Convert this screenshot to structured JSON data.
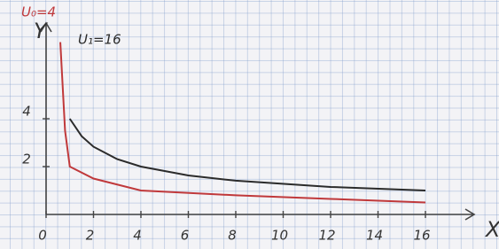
{
  "chart_data": {
    "type": "line",
    "x_label": "X",
    "y_label": "Y",
    "xlim": [
      0,
      18
    ],
    "ylim": [
      0,
      8
    ],
    "xticks": [
      0,
      2,
      4,
      6,
      8,
      10,
      12,
      14,
      16
    ],
    "yticks": [
      2,
      4
    ],
    "series": [
      {
        "name": "U₁=16",
        "color": "#2b2b2b",
        "x": [
          1,
          1.5,
          2,
          3,
          4,
          6,
          8,
          12,
          16
        ],
        "values": [
          4,
          3.27,
          2.83,
          2.31,
          2,
          1.63,
          1.41,
          1.15,
          1
        ]
      },
      {
        "name": "U₀=4",
        "color": "#c0393b",
        "x": [
          0.6,
          0.8,
          1,
          2,
          4,
          8,
          12,
          16
        ],
        "values": [
          7.2,
          3.5,
          2,
          1.5,
          1,
          0.8,
          0.65,
          0.5
        ]
      }
    ]
  }
}
